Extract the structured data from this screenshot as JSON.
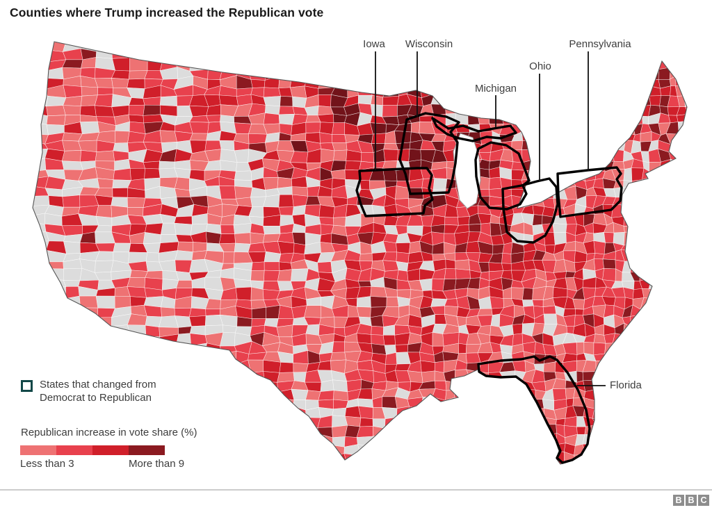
{
  "title": "Counties where Trump increased the Republican vote",
  "map": {
    "state_labels": [
      "Iowa",
      "Wisconsin",
      "Michigan",
      "Ohio",
      "Pennsylvania",
      "Florida"
    ]
  },
  "legend": {
    "changed_states_label": "States that changed from Democrat to Republican",
    "box_icon_color": "#124848"
  },
  "scale": {
    "title": "Republican increase in vote share (%)",
    "min_label": "Less than 3",
    "max_label": "More than 9",
    "colors": [
      "#ee7273",
      "#e8414d",
      "#d01f2a",
      "#8b1a20"
    ]
  },
  "map_palette": {
    "no_increase": "#dcdcdc",
    "band1": "#ee7273",
    "band2": "#e8414d",
    "band3": "#d01f2a",
    "band4": "#8b1a20",
    "deep": "#72131a",
    "water": "#ffffff",
    "county_border": "#ffffff",
    "state_highlight_outline": "#000000",
    "country_outline": "#555555"
  },
  "footer": {
    "logo_letters": [
      "B",
      "B",
      "C"
    ],
    "logo_color": "#8d8d8d"
  },
  "chart_data": {
    "type": "choropleth-map",
    "title": "Counties where Trump increased the Republican vote",
    "region": "Contiguous United States, by county",
    "measure": "Republican increase in vote share (%)",
    "color_bins": [
      {
        "color": "#ee7273",
        "label": "Less than 3"
      },
      {
        "color": "#e8414d",
        "label": ""
      },
      {
        "color": "#d01f2a",
        "label": ""
      },
      {
        "color": "#8b1a20",
        "label": "More than 9"
      }
    ],
    "no_data_color": "#dcdcdc",
    "highlighted_states": [
      "Iowa",
      "Wisconsin",
      "Michigan",
      "Ohio",
      "Pennsylvania",
      "Florida"
    ],
    "highlight_meaning": "States that changed from Democrat to Republican",
    "notable_pattern": "Darkest increases concentrated in the upper Midwest (Dakotas, Minnesota, Iowa, Wisconsin), Appalachia and Maine; many western counties show no increase (grey)."
  }
}
